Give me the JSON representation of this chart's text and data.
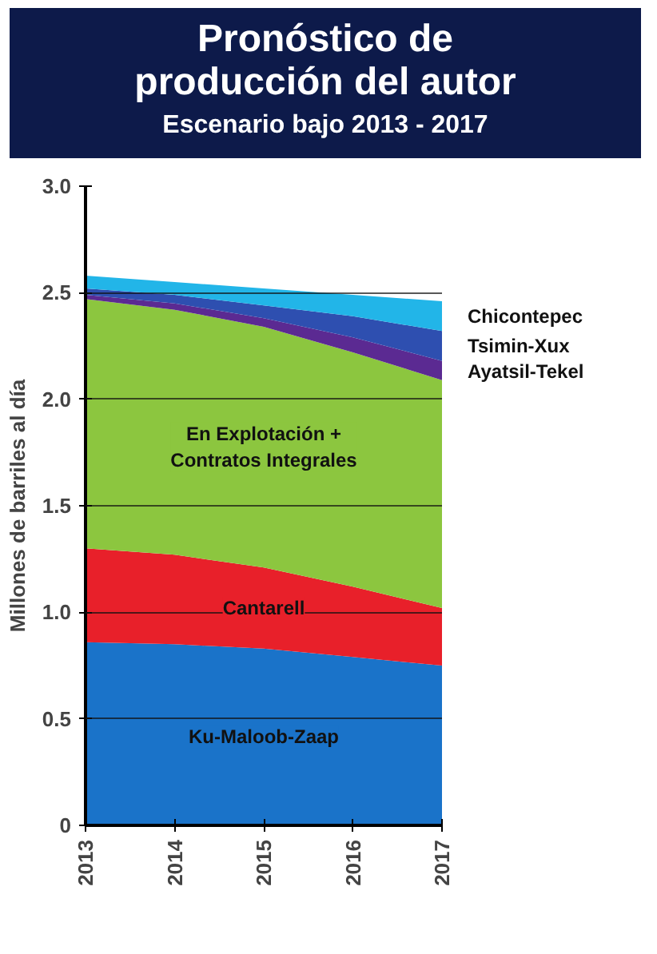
{
  "chart_data": {
    "type": "area",
    "stacked": true,
    "title": "Pronóstico de producción del autor",
    "subtitle": "Escenario bajo 2013 - 2017",
    "ylabel": "Millones de barriles al día",
    "x": [
      2013,
      2014,
      2015,
      2016,
      2017
    ],
    "xlim": [
      2013,
      2017
    ],
    "xticks": [
      2013,
      2014,
      2015,
      2016,
      2017
    ],
    "ylim": [
      0,
      3
    ],
    "yticks": [
      0,
      {
        "value": 0.5,
        "label": "0.5"
      },
      {
        "value": 1,
        "label": "1.0"
      },
      {
        "value": 1.5,
        "label": "1.5"
      },
      {
        "value": 2,
        "label": "2.0"
      },
      {
        "value": 2.5,
        "label": "2.5"
      },
      {
        "value": 3,
        "label": "3.0"
      }
    ],
    "grid": "y",
    "series": [
      {
        "name": "Ku-Maloob-Zaap",
        "color": "#1a73c9",
        "values": [
          0.86,
          0.85,
          0.83,
          0.79,
          0.75
        ]
      },
      {
        "name": "Cantarell",
        "color": "#e8202a",
        "values": [
          0.44,
          0.42,
          0.38,
          0.33,
          0.27
        ]
      },
      {
        "name": "En Explotación + Contratos Integrales",
        "color": "#8cc63f",
        "values": [
          1.17,
          1.15,
          1.13,
          1.1,
          1.07
        ]
      },
      {
        "name": "Ayatsil-Tekel",
        "color": "#5b2a92",
        "values": [
          0.02,
          0.03,
          0.04,
          0.07,
          0.09
        ]
      },
      {
        "name": "Tsimin-Xux",
        "color": "#2e4fb0",
        "values": [
          0.03,
          0.04,
          0.06,
          0.1,
          0.14
        ]
      },
      {
        "name": "Chicontepec",
        "color": "#22b5e8",
        "values": [
          0.06,
          0.06,
          0.08,
          0.1,
          0.14
        ]
      }
    ]
  }
}
